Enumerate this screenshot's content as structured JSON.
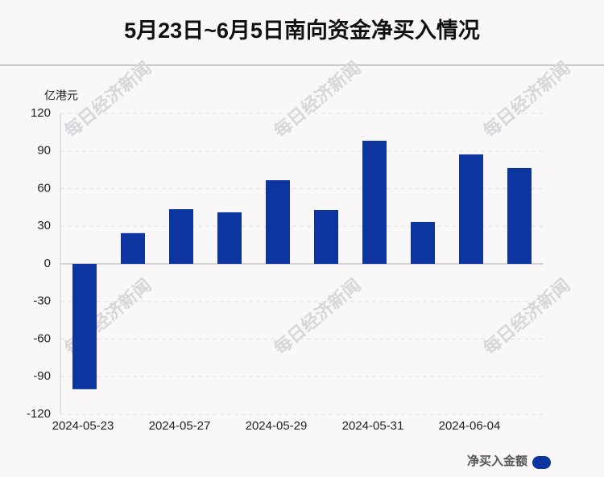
{
  "chart_data": {
    "type": "bar",
    "title": "5月23日~6月5日南向资金净买入情况",
    "y_label": "亿港元",
    "watermark": "每日经济新闻",
    "categories": [
      "2024-05-23",
      null,
      "2024-05-27",
      null,
      "2024-05-29",
      null,
      "2024-05-31",
      null,
      "2024-06-04",
      null
    ],
    "series": [
      {
        "name": "净买入金额",
        "color": "#0d35a0",
        "values": [
          -100,
          24.5,
          43.6,
          41.1,
          66.7,
          43,
          98.2,
          33.4,
          87.3,
          76.4
        ]
      }
    ],
    "ylim": [
      -120,
      120
    ],
    "yticks": [
      -120,
      -90,
      -60,
      -30,
      0,
      30,
      60,
      90,
      120
    ],
    "grid": true,
    "legend": "bottom-right"
  }
}
